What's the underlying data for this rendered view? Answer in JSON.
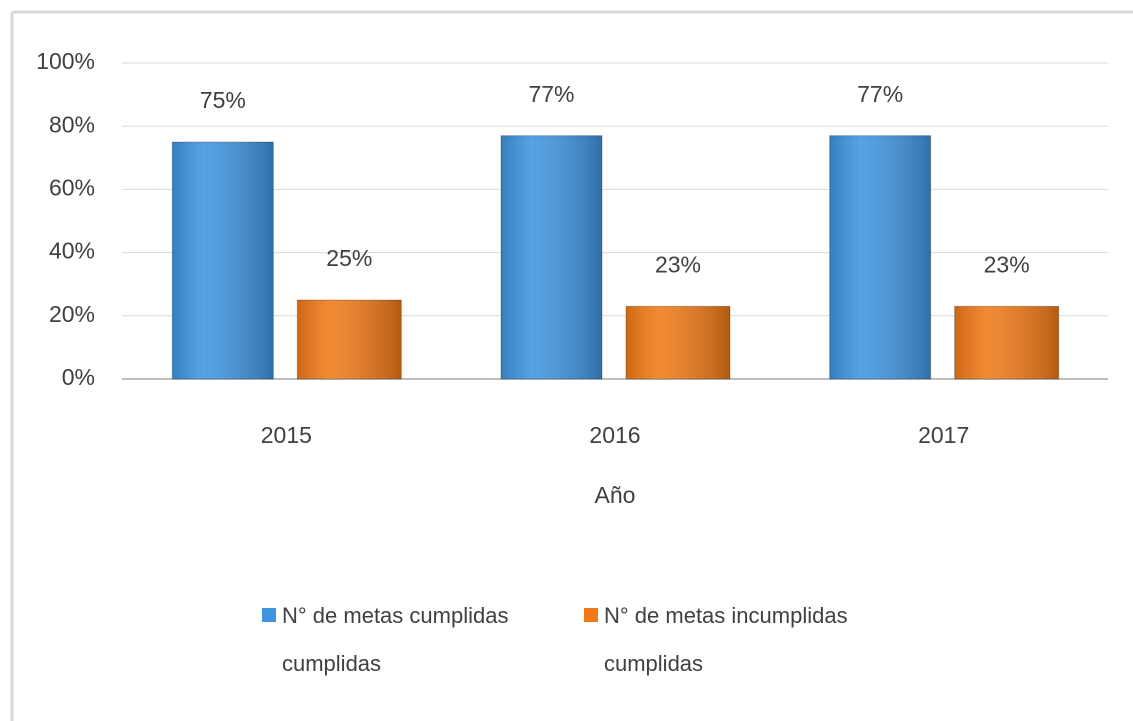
{
  "chart_data": {
    "type": "bar",
    "x_label": "Año",
    "categories": [
      "2015",
      "2016",
      "2017"
    ],
    "series": [
      {
        "name": "N° de metas cumplidas cumplidas",
        "color": "#3f95e0",
        "values": [
          75,
          77,
          77
        ],
        "value_labels": [
          "75%",
          "77%",
          "77%"
        ]
      },
      {
        "name": "N° de metas incumplidas cumplidas",
        "color": "#f07a18",
        "values": [
          25,
          23,
          23
        ],
        "value_labels": [
          "25%",
          "23%",
          "23%"
        ]
      }
    ],
    "ylim": [
      0,
      100
    ],
    "yticks": [
      {
        "value": 0,
        "label": "0%"
      },
      {
        "value": 20,
        "label": "20%"
      },
      {
        "value": 40,
        "label": "40%"
      },
      {
        "value": 60,
        "label": "60%"
      },
      {
        "value": 80,
        "label": "80%"
      },
      {
        "value": 100,
        "label": "100%"
      }
    ],
    "grid": true
  }
}
